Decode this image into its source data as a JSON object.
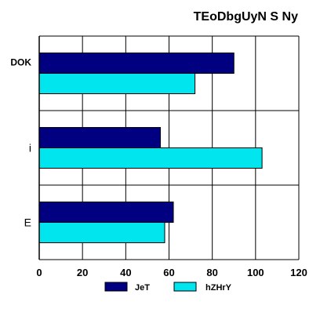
{
  "chart_data": {
    "type": "bar",
    "orientation": "horizontal",
    "title": "TEoDbgUyN S Ny",
    "xlabel": "",
    "ylabel": "",
    "categories": [
      "DOK",
      "i",
      "E"
    ],
    "series": [
      {
        "name": "JeT",
        "values": [
          90,
          56,
          62
        ],
        "color": "#000080"
      },
      {
        "name": "hZHrY",
        "values": [
          72,
          103,
          58
        ],
        "color": "#00e5ee"
      }
    ],
    "xlim": [
      0,
      120
    ],
    "xticks": [
      "0",
      "20",
      "40",
      "60",
      "80",
      "100",
      "120"
    ],
    "grid": true,
    "legend": "bottom"
  }
}
